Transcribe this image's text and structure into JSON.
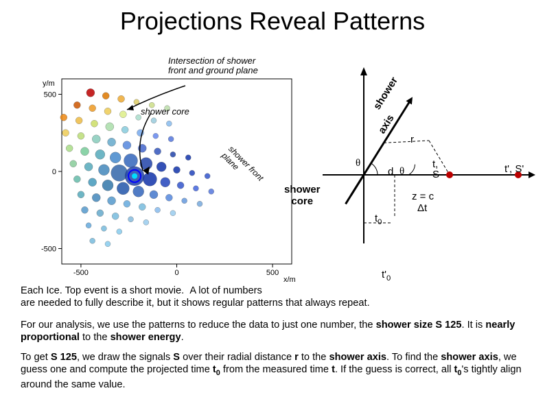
{
  "title": "Projections Reveal Patterns",
  "labels": {
    "intersection": "Intersection of shower\nfront and ground plane",
    "shower_core_upper": "shower core",
    "shower_front_plane": "shower front\nplane",
    "shower_axis": "shower",
    "axis_sub": "axis",
    "r": "r",
    "theta1": "θ",
    "d": "d",
    "theta2": "θ",
    "t_S": "t,\nS",
    "tp_Sp": "t', S'",
    "shower_core_lower": "shower\ncore",
    "z_eq_c": "z = c",
    "delta_t": "Δt",
    "t0": "t₀",
    "tp0": "t'₀"
  },
  "paragraphs": {
    "p1": "Each Ice. Top event is a short movie.  A lot of numbers\nare needed to fully describe it, but it shows regular patterns that always repeat.",
    "p2": "For our analysis, we use the patterns to reduce the data to just one number, the shower size S 125. It is nearly proportional to the shower energy.",
    "p3": "To get S 125, we draw the signals S over their radial distance r to the shower axis. To find the shower axis, we guess one and compute the projected time t₀ from the measured time t. If the guess is correct, all t₀'s tightly align around the same value."
  },
  "scatter": {
    "axis_color": "#000000",
    "xlabel": "x/m",
    "ylabel": "y/m",
    "xlim": [
      -600,
      600
    ],
    "ylim": [
      -600,
      600
    ],
    "ticks": [
      -500,
      0,
      500
    ],
    "bg": "#ffffff",
    "points": [
      {
        "x": -450,
        "y": 510,
        "c": "#bb0000",
        "r": 6
      },
      {
        "x": -370,
        "y": 490,
        "c": "#dd7700",
        "r": 5
      },
      {
        "x": -290,
        "y": 470,
        "c": "#eeaa33",
        "r": 5
      },
      {
        "x": -210,
        "y": 450,
        "c": "#ddcc66",
        "r": 4
      },
      {
        "x": -130,
        "y": 430,
        "c": "#ccdd88",
        "r": 4
      },
      {
        "x": -50,
        "y": 410,
        "c": "#bbddaa",
        "r": 4
      },
      {
        "x": -520,
        "y": 430,
        "c": "#cc5500",
        "r": 5
      },
      {
        "x": -440,
        "y": 410,
        "c": "#ee9922",
        "r": 5
      },
      {
        "x": -360,
        "y": 390,
        "c": "#eecc55",
        "r": 5
      },
      {
        "x": -280,
        "y": 370,
        "c": "#ddee88",
        "r": 5
      },
      {
        "x": -200,
        "y": 350,
        "c": "#aaddcc",
        "r": 4
      },
      {
        "x": -120,
        "y": 330,
        "c": "#99ccdd",
        "r": 4
      },
      {
        "x": -40,
        "y": 310,
        "c": "#88bbee",
        "r": 4
      },
      {
        "x": -590,
        "y": 350,
        "c": "#ee8811",
        "r": 5
      },
      {
        "x": -510,
        "y": 330,
        "c": "#eebb44",
        "r": 5
      },
      {
        "x": -430,
        "y": 310,
        "c": "#ccdd66",
        "r": 5
      },
      {
        "x": -350,
        "y": 290,
        "c": "#aaddaa",
        "r": 6
      },
      {
        "x": -270,
        "y": 270,
        "c": "#88ccdd",
        "r": 5
      },
      {
        "x": -190,
        "y": 250,
        "c": "#77aaee",
        "r": 5
      },
      {
        "x": -110,
        "y": 230,
        "c": "#6688ee",
        "r": 4
      },
      {
        "x": -30,
        "y": 210,
        "c": "#5577dd",
        "r": 4
      },
      {
        "x": -580,
        "y": 250,
        "c": "#eecc55",
        "r": 5
      },
      {
        "x": -500,
        "y": 230,
        "c": "#bbdd77",
        "r": 5
      },
      {
        "x": -420,
        "y": 210,
        "c": "#88ccbb",
        "r": 6
      },
      {
        "x": -340,
        "y": 190,
        "c": "#66aacc",
        "r": 6
      },
      {
        "x": -260,
        "y": 170,
        "c": "#5588dd",
        "r": 6
      },
      {
        "x": -180,
        "y": 150,
        "c": "#4466cc",
        "r": 6
      },
      {
        "x": -100,
        "y": 130,
        "c": "#3355bb",
        "r": 5
      },
      {
        "x": -20,
        "y": 110,
        "c": "#2244aa",
        "r": 4
      },
      {
        "x": 60,
        "y": 90,
        "c": "#1133aa",
        "r": 4
      },
      {
        "x": -560,
        "y": 150,
        "c": "#aadd88",
        "r": 5
      },
      {
        "x": -480,
        "y": 130,
        "c": "#77cc99",
        "r": 6
      },
      {
        "x": -400,
        "y": 110,
        "c": "#55aabb",
        "r": 7
      },
      {
        "x": -320,
        "y": 90,
        "c": "#4488cc",
        "r": 8
      },
      {
        "x": -240,
        "y": 70,
        "c": "#3366bb",
        "r": 10
      },
      {
        "x": -160,
        "y": 50,
        "c": "#2244aa",
        "r": 9
      },
      {
        "x": -80,
        "y": 30,
        "c": "#1133aa",
        "r": 7
      },
      {
        "x": 0,
        "y": 10,
        "c": "#1133aa",
        "r": 5
      },
      {
        "x": 80,
        "y": -10,
        "c": "#2244bb",
        "r": 4
      },
      {
        "x": 160,
        "y": -30,
        "c": "#3355cc",
        "r": 4
      },
      {
        "x": -540,
        "y": 50,
        "c": "#88cc99",
        "r": 5
      },
      {
        "x": -460,
        "y": 30,
        "c": "#55aabb",
        "r": 6
      },
      {
        "x": -380,
        "y": 10,
        "c": "#4488bb",
        "r": 8
      },
      {
        "x": -300,
        "y": -10,
        "c": "#3366aa",
        "r": 12
      },
      {
        "x": -220,
        "y": -30,
        "c": "#2244aa",
        "r": 14
      },
      {
        "x": -140,
        "y": -50,
        "c": "#1133aa",
        "r": 10
      },
      {
        "x": -60,
        "y": -70,
        "c": "#2244bb",
        "r": 7
      },
      {
        "x": 20,
        "y": -90,
        "c": "#3355cc",
        "r": 5
      },
      {
        "x": 100,
        "y": -110,
        "c": "#4466dd",
        "r": 4
      },
      {
        "x": 180,
        "y": -130,
        "c": "#5577dd",
        "r": 4
      },
      {
        "x": -520,
        "y": -50,
        "c": "#66bbaa",
        "r": 5
      },
      {
        "x": -440,
        "y": -70,
        "c": "#4499bb",
        "r": 6
      },
      {
        "x": -360,
        "y": -90,
        "c": "#3377aa",
        "r": 8
      },
      {
        "x": -280,
        "y": -110,
        "c": "#2255aa",
        "r": 9
      },
      {
        "x": -200,
        "y": -130,
        "c": "#3366bb",
        "r": 8
      },
      {
        "x": -120,
        "y": -150,
        "c": "#4477cc",
        "r": 6
      },
      {
        "x": -40,
        "y": -170,
        "c": "#5588dd",
        "r": 5
      },
      {
        "x": 40,
        "y": -190,
        "c": "#6699dd",
        "r": 4
      },
      {
        "x": 120,
        "y": -210,
        "c": "#77aadd",
        "r": 4
      },
      {
        "x": -500,
        "y": -150,
        "c": "#55aabb",
        "r": 5
      },
      {
        "x": -420,
        "y": -170,
        "c": "#4488bb",
        "r": 6
      },
      {
        "x": -340,
        "y": -190,
        "c": "#5599cc",
        "r": 6
      },
      {
        "x": -260,
        "y": -210,
        "c": "#66aadd",
        "r": 5
      },
      {
        "x": -180,
        "y": -230,
        "c": "#77bbdd",
        "r": 5
      },
      {
        "x": -100,
        "y": -250,
        "c": "#88bbee",
        "r": 4
      },
      {
        "x": -20,
        "y": -270,
        "c": "#99ccee",
        "r": 4
      },
      {
        "x": -480,
        "y": -250,
        "c": "#5599cc",
        "r": 5
      },
      {
        "x": -400,
        "y": -270,
        "c": "#66aacc",
        "r": 5
      },
      {
        "x": -320,
        "y": -290,
        "c": "#77bbdd",
        "r": 5
      },
      {
        "x": -240,
        "y": -310,
        "c": "#88bbdd",
        "r": 4
      },
      {
        "x": -160,
        "y": -330,
        "c": "#99ccee",
        "r": 4
      },
      {
        "x": -460,
        "y": -350,
        "c": "#66aadd",
        "r": 4
      },
      {
        "x": -380,
        "y": -370,
        "c": "#77bbdd",
        "r": 4
      },
      {
        "x": -300,
        "y": -390,
        "c": "#88ccee",
        "r": 4
      },
      {
        "x": -440,
        "y": -450,
        "c": "#77bbdd",
        "r": 4
      },
      {
        "x": -360,
        "y": -470,
        "c": "#88ccee",
        "r": 4
      }
    ],
    "core_marker": {
      "x": -220,
      "y": -30,
      "outer": "#0000ff",
      "inner": "#00ddff"
    }
  },
  "diagram": {
    "colors": {
      "axis": "#000000",
      "dots": "#bb0000",
      "construction": "#000000"
    },
    "arrow_width": 2.0
  }
}
